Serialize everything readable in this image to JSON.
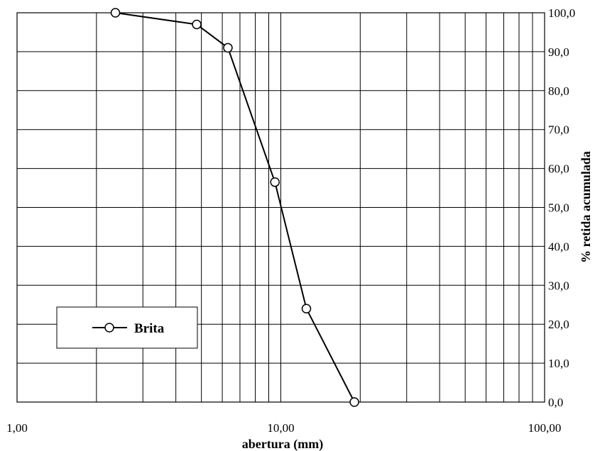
{
  "chart_data": {
    "type": "line",
    "x_scale": "log",
    "xlim": [
      1,
      100
    ],
    "ylim": [
      0,
      100
    ],
    "xlabel": "abertura (mm)",
    "ylabel": "% retida acumulada",
    "x_tick_labels": [
      {
        "value": 1,
        "label": "1,00"
      },
      {
        "value": 10,
        "label": "10,00"
      },
      {
        "value": 100,
        "label": "100,00"
      }
    ],
    "y_tick_labels": [
      {
        "value": 0,
        "label": "0,0"
      },
      {
        "value": 10,
        "label": "10,0"
      },
      {
        "value": 20,
        "label": "20,0"
      },
      {
        "value": 30,
        "label": "30,0"
      },
      {
        "value": 40,
        "label": "40,0"
      },
      {
        "value": 50,
        "label": "50,0"
      },
      {
        "value": 60,
        "label": "60,0"
      },
      {
        "value": 70,
        "label": "70,0"
      },
      {
        "value": 80,
        "label": "80,0"
      },
      {
        "value": 90,
        "label": "90,0"
      },
      {
        "value": 100,
        "label": "100,0"
      }
    ],
    "grid": true,
    "legend": {
      "position": "bottom-left"
    },
    "series": [
      {
        "name": "Brita",
        "color": "#000000",
        "marker": "open-circle",
        "points": [
          {
            "x": 2.36,
            "y": 100.0
          },
          {
            "x": 4.8,
            "y": 97.0
          },
          {
            "x": 6.3,
            "y": 91.0
          },
          {
            "x": 9.5,
            "y": 56.5
          },
          {
            "x": 12.5,
            "y": 24.0
          },
          {
            "x": 19.0,
            "y": 0.0
          }
        ]
      }
    ]
  }
}
